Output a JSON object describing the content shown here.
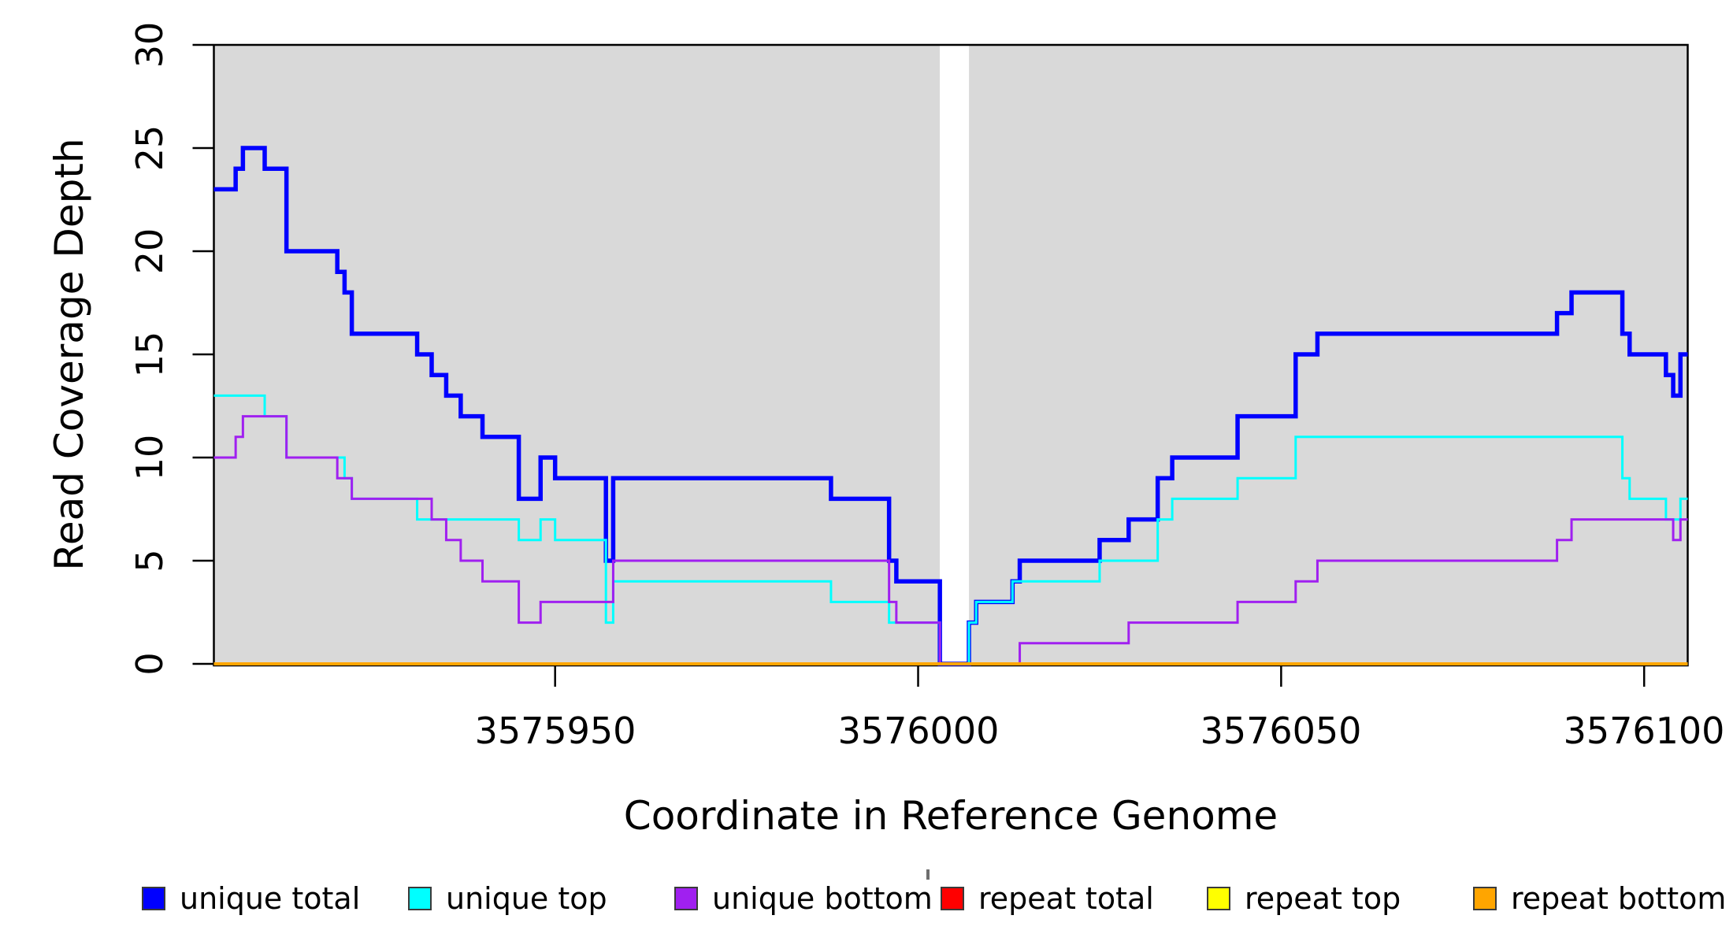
{
  "figure": {
    "background": "#FFFFFF",
    "plot_background": "#D9D9D9",
    "axis_color": "#000000"
  },
  "chart_data": {
    "type": "line",
    "subtype": "step",
    "title": "",
    "xlabel": "Coordinate in Reference Genome",
    "ylabel": "Read Coverage Depth",
    "xlim": [
      3575903,
      3576106
    ],
    "ylim": [
      0,
      30
    ],
    "grid": false,
    "legend_position": "bottom",
    "x_ticks": [
      {
        "value": 3575950,
        "label": "3575950"
      },
      {
        "value": 3576000,
        "label": "3576000"
      },
      {
        "value": 3576050,
        "label": "3576050"
      },
      {
        "value": 3576100,
        "label": "3576100"
      }
    ],
    "y_ticks": [
      {
        "value": 0,
        "label": "0"
      },
      {
        "value": 5,
        "label": "5"
      },
      {
        "value": 10,
        "label": "10"
      },
      {
        "value": 15,
        "label": "15"
      },
      {
        "value": 20,
        "label": "20"
      },
      {
        "value": 25,
        "label": "25"
      },
      {
        "value": 30,
        "label": "30"
      }
    ],
    "coverage_gap": {
      "start": 3576003,
      "end": 3576007,
      "fill": "#FFFFFF"
    },
    "series": [
      {
        "id": "unique-total",
        "name": "unique total",
        "color": "#0000FF",
        "width": 5.5,
        "steps": [
          [
            3575903,
            23
          ],
          [
            3575906,
            24
          ],
          [
            3575907,
            25
          ],
          [
            3575910,
            24
          ],
          [
            3575913,
            20
          ],
          [
            3575920,
            19
          ],
          [
            3575921,
            18
          ],
          [
            3575922,
            16
          ],
          [
            3575931,
            15
          ],
          [
            3575933,
            14
          ],
          [
            3575935,
            13
          ],
          [
            3575937,
            12
          ],
          [
            3575940,
            11
          ],
          [
            3575945,
            8
          ],
          [
            3575948,
            10
          ],
          [
            3575950,
            9
          ],
          [
            3575957,
            5
          ],
          [
            3575958,
            9
          ],
          [
            3575988,
            8
          ],
          [
            3575996,
            5
          ],
          [
            3575997,
            4
          ],
          [
            3576003,
            0
          ],
          [
            3576007,
            2
          ],
          [
            3576008,
            3
          ],
          [
            3576013,
            4
          ],
          [
            3576014,
            5
          ],
          [
            3576025,
            6
          ],
          [
            3576029,
            7
          ],
          [
            3576033,
            9
          ],
          [
            3576035,
            10
          ],
          [
            3576044,
            12
          ],
          [
            3576052,
            15
          ],
          [
            3576055,
            16
          ],
          [
            3576088,
            17
          ],
          [
            3576090,
            18
          ],
          [
            3576097,
            16
          ],
          [
            3576098,
            15
          ],
          [
            3576103,
            14
          ],
          [
            3576104,
            13
          ],
          [
            3576105,
            15
          ]
        ]
      },
      {
        "id": "unique-top",
        "name": "unique top",
        "color": "#00FFFF",
        "width": 3,
        "steps": [
          [
            3575903,
            13
          ],
          [
            3575910,
            12
          ],
          [
            3575913,
            10
          ],
          [
            3575921,
            9
          ],
          [
            3575922,
            8
          ],
          [
            3575931,
            7
          ],
          [
            3575945,
            6
          ],
          [
            3575948,
            7
          ],
          [
            3575950,
            6
          ],
          [
            3575957,
            2
          ],
          [
            3575958,
            4
          ],
          [
            3575988,
            3
          ],
          [
            3575996,
            2
          ],
          [
            3576003,
            0
          ],
          [
            3576007,
            2
          ],
          [
            3576008,
            3
          ],
          [
            3576013,
            4
          ],
          [
            3576025,
            5
          ],
          [
            3576033,
            7
          ],
          [
            3576035,
            8
          ],
          [
            3576044,
            9
          ],
          [
            3576052,
            11
          ],
          [
            3576097,
            9
          ],
          [
            3576098,
            8
          ],
          [
            3576103,
            7
          ],
          [
            3576105,
            8
          ]
        ]
      },
      {
        "id": "unique-bottom",
        "name": "unique bottom",
        "color": "#A020F0",
        "width": 3,
        "steps": [
          [
            3575903,
            10
          ],
          [
            3575906,
            11
          ],
          [
            3575907,
            12
          ],
          [
            3575913,
            10
          ],
          [
            3575920,
            9
          ],
          [
            3575922,
            8
          ],
          [
            3575933,
            7
          ],
          [
            3575935,
            6
          ],
          [
            3575937,
            5
          ],
          [
            3575940,
            4
          ],
          [
            3575945,
            2
          ],
          [
            3575948,
            3
          ],
          [
            3575958,
            5
          ],
          [
            3575996,
            3
          ],
          [
            3575997,
            2
          ],
          [
            3576003,
            0
          ],
          [
            3576014,
            1
          ],
          [
            3576029,
            2
          ],
          [
            3576044,
            3
          ],
          [
            3576052,
            4
          ],
          [
            3576055,
            5
          ],
          [
            3576088,
            6
          ],
          [
            3576090,
            7
          ],
          [
            3576104,
            6
          ],
          [
            3576105,
            7
          ]
        ]
      },
      {
        "id": "repeat-total",
        "name": "repeat total",
        "color": "#FF0000",
        "width": 3,
        "steps": [
          [
            3575903,
            0
          ]
        ]
      },
      {
        "id": "repeat-top",
        "name": "repeat top",
        "color": "#FFFF00",
        "width": 3,
        "steps": [
          [
            3575903,
            0
          ]
        ]
      },
      {
        "id": "repeat-bottom",
        "name": "repeat bottom",
        "color": "#FFA500",
        "width": 4,
        "steps": [
          [
            3575903,
            0
          ]
        ]
      }
    ]
  },
  "legend": {
    "items": [
      {
        "label": "unique total",
        "color": "#0000FF"
      },
      {
        "label": "unique top",
        "color": "#00FFFF"
      },
      {
        "label": "unique bottom",
        "color": "#A020F0"
      },
      {
        "label": "repeat total",
        "color": "#FF0000"
      },
      {
        "label": "repeat top",
        "color": "#FFFF00"
      },
      {
        "label": "repeat bottom",
        "color": "#FFA500"
      }
    ]
  }
}
